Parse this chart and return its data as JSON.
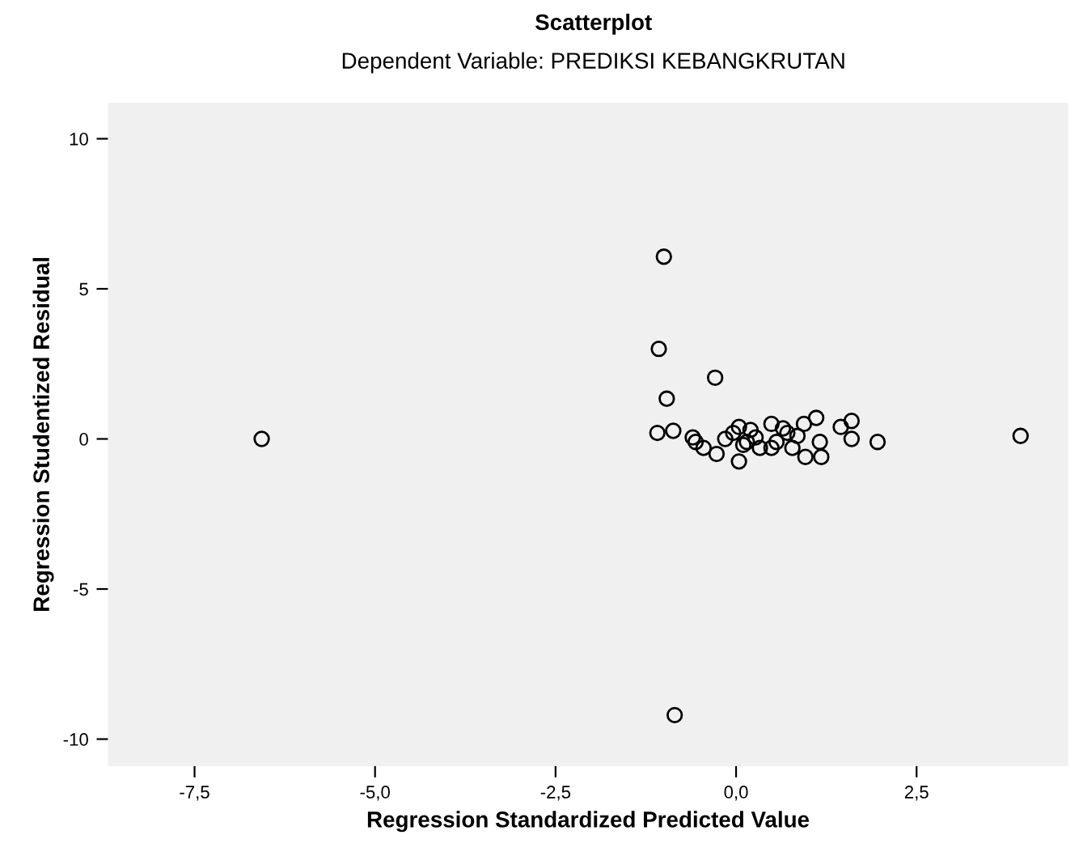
{
  "chart_data": {
    "type": "scatter",
    "title": "Scatterplot",
    "subtitle": "Dependent Variable: PREDIKSI KEBANGKRUTAN",
    "xlabel": "Regression Standardized Predicted Value",
    "ylabel": "Regression Studentized Residual",
    "xlim": [
      -8.7,
      4.6
    ],
    "ylim": [
      -10.9,
      11.2
    ],
    "xticks": [
      {
        "value": -7.5,
        "label": "-7,5"
      },
      {
        "value": -5.0,
        "label": "-5,0"
      },
      {
        "value": -2.5,
        "label": "-2,5"
      },
      {
        "value": 0.0,
        "label": "0,0"
      },
      {
        "value": 2.5,
        "label": "2,5"
      }
    ],
    "yticks": [
      -10,
      -5,
      0,
      5,
      10
    ],
    "grid": false,
    "marker": "circle",
    "series": [
      {
        "color": "#000000",
        "x": [
          -6.57,
          -1.0,
          -1.07,
          -0.96,
          -0.29,
          -0.85,
          3.94,
          1.96,
          -1.09,
          -0.87,
          -0.56,
          0.04,
          0.04,
          0.49,
          0.94,
          1.11,
          1.16,
          1.18,
          0.96,
          1.45,
          1.6,
          1.6,
          0.56,
          0.27,
          -0.04,
          0.71,
          0.33,
          0.78,
          -0.27,
          -0.6,
          0.49,
          -0.45,
          0.1,
          0.2,
          0.65,
          0.85,
          -0.15,
          0.15
        ],
        "values": [
          0.0,
          6.07,
          3.0,
          1.34,
          2.04,
          -9.2,
          0.1,
          -0.1,
          0.2,
          0.27,
          -0.1,
          -0.75,
          0.4,
          0.5,
          0.5,
          0.7,
          -0.1,
          -0.6,
          -0.6,
          0.4,
          0.6,
          0.0,
          -0.1,
          0.05,
          0.2,
          0.2,
          -0.3,
          -0.3,
          -0.5,
          0.05,
          -0.3,
          -0.3,
          -0.2,
          0.3,
          0.35,
          0.1,
          0.0,
          -0.1
        ]
      }
    ]
  }
}
